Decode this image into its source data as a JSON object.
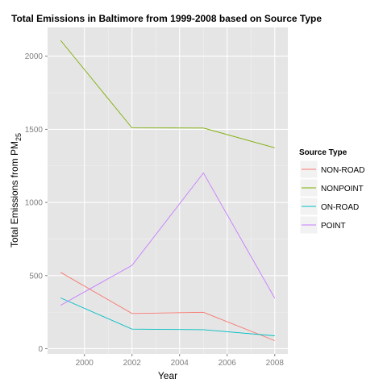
{
  "chart_data": {
    "type": "line",
    "title": "Total Emissions in Baltimore from 1999-2008 based on Source Type",
    "xlabel": "Year",
    "ylabel": {
      "main": "Total Emissions from PM",
      "sub": "25"
    },
    "x": [
      1999,
      2002,
      2005,
      2008
    ],
    "xlim": [
      1998.45,
      2008.55
    ],
    "ylim": [
      -36,
      2197
    ],
    "xticks": [
      2000,
      2002,
      2004,
      2006,
      2008
    ],
    "yticks": [
      0,
      500,
      1000,
      1500,
      2000
    ],
    "grid": true,
    "legend": {
      "title": "Source Type",
      "placement": "right"
    },
    "series": [
      {
        "name": "NON-ROAD",
        "color": "#f8766d",
        "values": [
          522,
          241,
          249,
          55
        ]
      },
      {
        "name": "NONPOINT",
        "color": "#7cae00",
        "values": [
          2108,
          1510,
          1509,
          1374
        ]
      },
      {
        "name": "ON-ROAD",
        "color": "#00bfc4",
        "values": [
          347,
          134,
          130,
          88
        ]
      },
      {
        "name": "POINT",
        "color": "#c77cff",
        "values": [
          297,
          570,
          1202,
          345
        ]
      }
    ]
  }
}
